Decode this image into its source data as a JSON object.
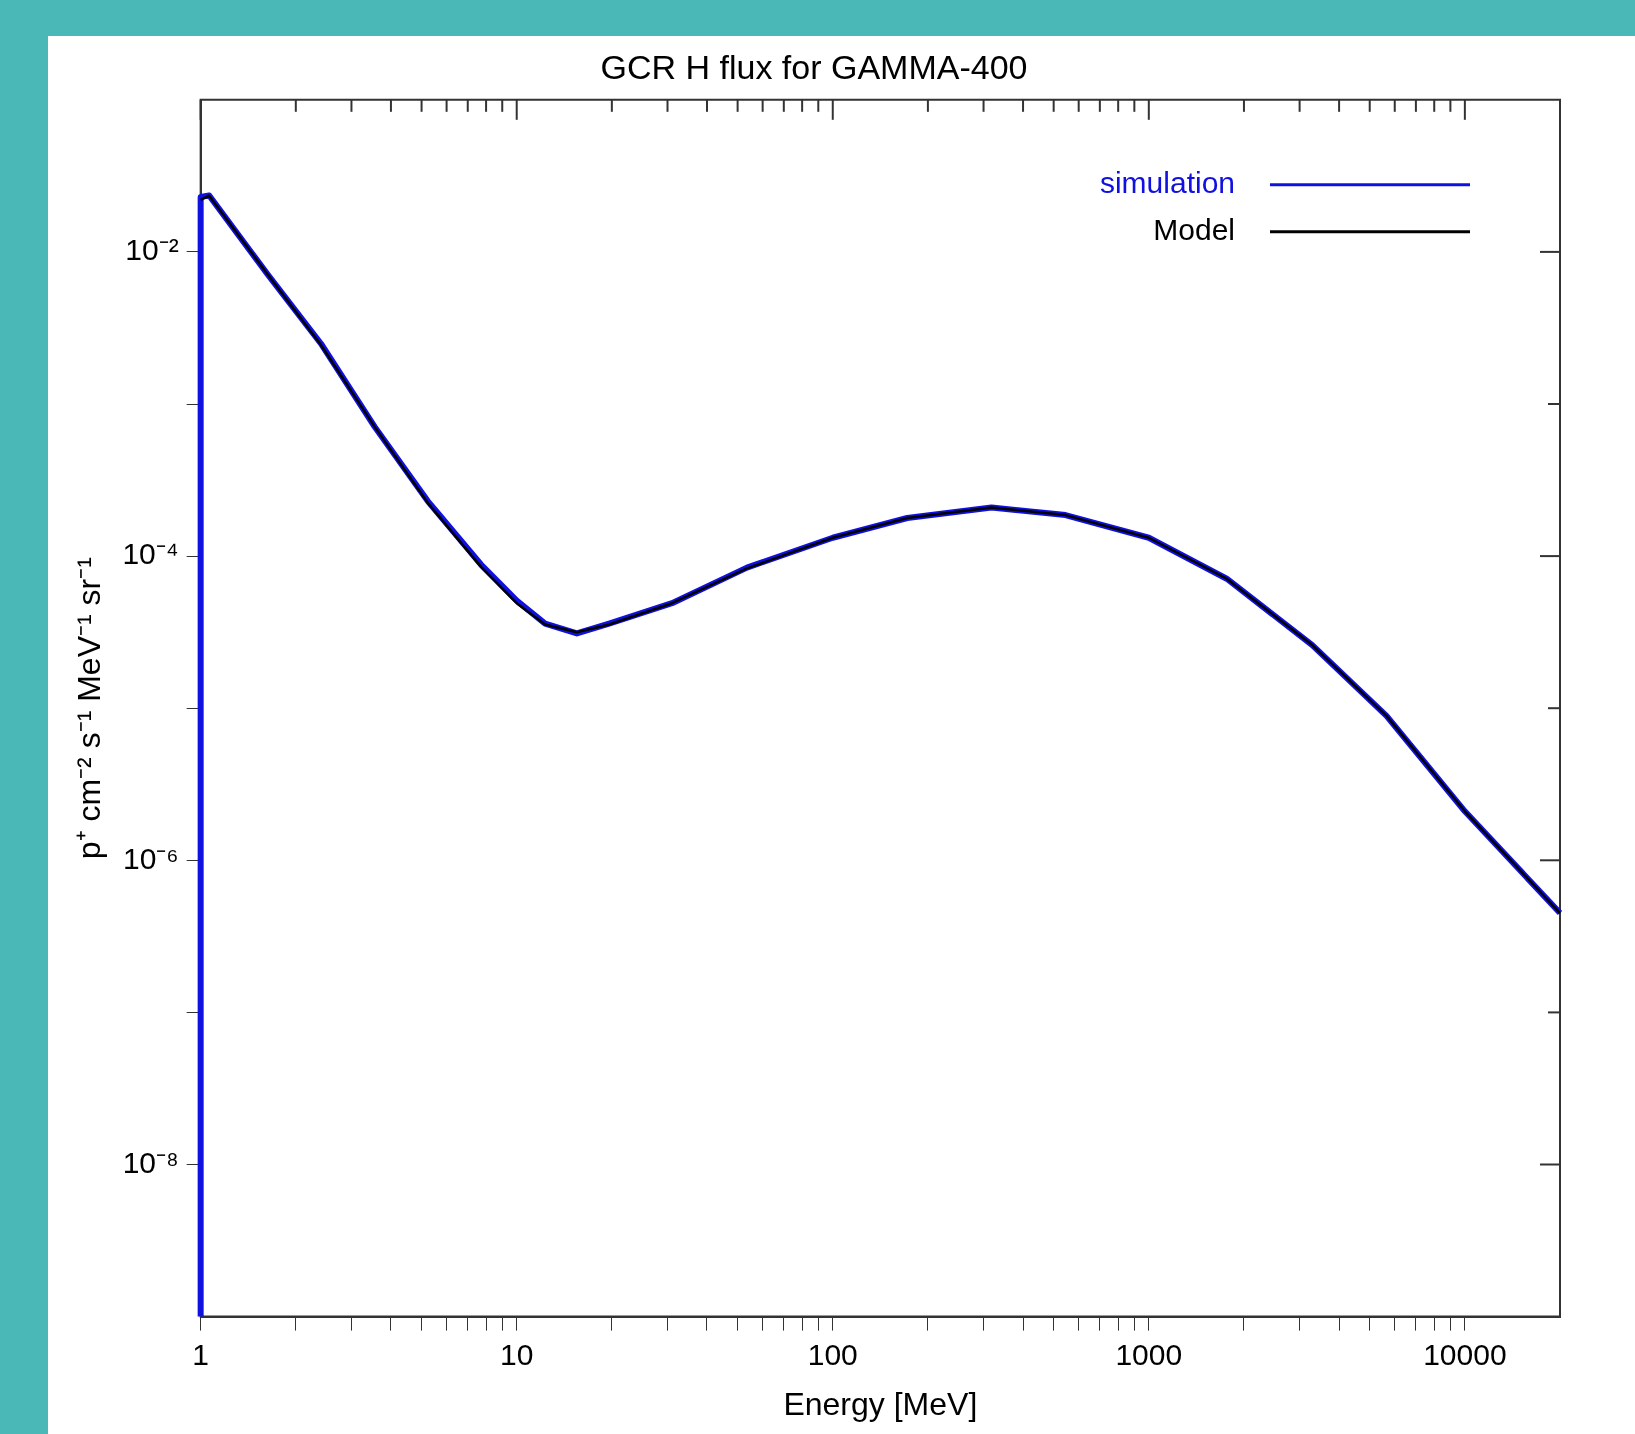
{
  "chart_data": {
    "type": "line",
    "title": "GCR H flux for GAMMA-400",
    "xlabel": "Energy [MeV]",
    "ylabel": "p⁺ cm⁻² s⁻¹ MeV⁻¹ sr⁻¹",
    "log": "xy",
    "grid": false,
    "legend": "top right",
    "marker": "none",
    "xlim": [
      1,
      20000
    ],
    "ylim": [
      1e-09,
      0.1
    ],
    "xticks": [
      1,
      {
        "value": 2,
        "label": null
      },
      {
        "value": 3,
        "label": null
      },
      {
        "value": 4,
        "label": null
      },
      {
        "value": 5,
        "label": null
      },
      {
        "value": 6,
        "label": null
      },
      {
        "value": 7,
        "label": null
      },
      {
        "value": 8,
        "label": null
      },
      {
        "value": 9,
        "label": null
      },
      10,
      {
        "value": 20,
        "label": null
      },
      {
        "value": 30,
        "label": null
      },
      {
        "value": 40,
        "label": null
      },
      {
        "value": 50,
        "label": null
      },
      {
        "value": 60,
        "label": null
      },
      {
        "value": 70,
        "label": null
      },
      {
        "value": 80,
        "label": null
      },
      {
        "value": 90,
        "label": null
      },
      100,
      {
        "value": 200,
        "label": null
      },
      {
        "value": 300,
        "label": null
      },
      {
        "value": 400,
        "label": null
      },
      {
        "value": 500,
        "label": null
      },
      {
        "value": 600,
        "label": null
      },
      {
        "value": 700,
        "label": null
      },
      {
        "value": 800,
        "label": null
      },
      {
        "value": 900,
        "label": null
      },
      1000,
      {
        "value": 2000,
        "label": null
      },
      {
        "value": 3000,
        "label": null
      },
      {
        "value": 4000,
        "label": null
      },
      {
        "value": 5000,
        "label": null
      },
      {
        "value": 6000,
        "label": null
      },
      {
        "value": 7000,
        "label": null
      },
      {
        "value": 8000,
        "label": null
      },
      {
        "value": 9000,
        "label": null
      },
      10000
    ],
    "yticks": [
      {
        "value": 1e-08,
        "label": "10⁻⁸"
      },
      {
        "value": 1e-07,
        "label": null
      },
      {
        "value": 1e-06,
        "label": "10⁻⁶"
      },
      {
        "value": 1e-05,
        "label": null
      },
      {
        "value": 0.0001,
        "label": "10⁻⁴"
      },
      {
        "value": 0.001,
        "label": null
      },
      {
        "value": 0.01,
        "label": "10⁻²"
      }
    ],
    "series": [
      {
        "name": "simulation",
        "type": "line",
        "color": "#1010e0",
        "x": [
          1,
          1,
          1.064,
          1.63,
          2.4,
          3.55,
          5.23,
          7.71,
          10,
          12.3,
          15.5,
          19.6,
          31,
          53.5,
          100,
          172,
          318,
          545,
          1000,
          1764,
          3290,
          5650,
          10000,
          20000
        ],
        "values": [
          1e-09,
          0.023,
          0.0235,
          0.0071,
          0.0025,
          0.00071,
          0.00023,
          8.8e-05,
          5.1e-05,
          3.6e-05,
          3.1e-05,
          3.6e-05,
          4.9e-05,
          8.4e-05,
          0.000132,
          0.000178,
          0.000209,
          0.000186,
          0.000132,
          7.1e-05,
          2.6e-05,
          8.9e-06,
          2.1e-06,
          4.5e-07
        ]
      },
      {
        "name": "Model",
        "type": "line",
        "color": "#000000",
        "x": [
          1,
          1.064,
          1.63,
          2.4,
          3.55,
          5.23,
          7.71,
          10,
          12.3,
          15.5,
          19.6,
          31,
          53.5,
          100,
          172,
          318,
          545,
          1000,
          1764,
          3290,
          5650,
          10000,
          20000
        ],
        "values": [
          0.022,
          0.0234,
          0.0071,
          0.00245,
          0.00071,
          0.000224,
          8.5e-05,
          4.9e-05,
          3.55e-05,
          3.16e-05,
          3.55e-05,
          4.9e-05,
          8.3e-05,
          0.000132,
          0.000178,
          0.000209,
          0.000186,
          0.000132,
          7.1e-05,
          2.6e-05,
          8.9e-06,
          2.1e-06,
          4.5e-07
        ]
      }
    ]
  }
}
